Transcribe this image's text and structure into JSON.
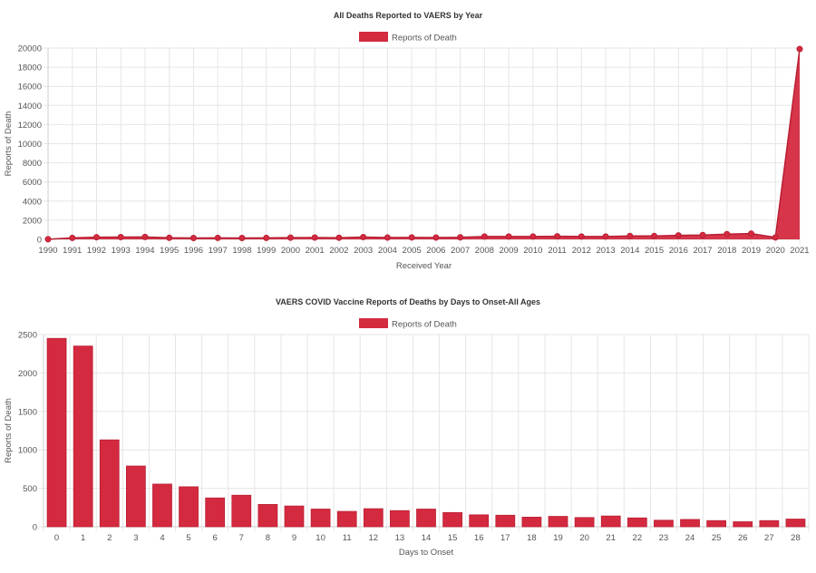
{
  "chart_data": [
    {
      "type": "area",
      "title": "All Deaths Reported to VAERS by Year",
      "xlabel": "Received Year",
      "ylabel": "Reports of Death",
      "legend": [
        "Reports of Death"
      ],
      "legend_position": "top",
      "grid": true,
      "color": "#d42a40",
      "ylim": [
        0,
        20000
      ],
      "yticks": [
        0,
        2000,
        4000,
        6000,
        8000,
        10000,
        12000,
        14000,
        16000,
        18000,
        20000
      ],
      "categories": [
        "1990",
        "1991",
        "1992",
        "1993",
        "1994",
        "1995",
        "1996",
        "1997",
        "1998",
        "1999",
        "2000",
        "2001",
        "2002",
        "2003",
        "2004",
        "2005",
        "2006",
        "2007",
        "2008",
        "2009",
        "2010",
        "2011",
        "2012",
        "2013",
        "2014",
        "2015",
        "2016",
        "2017",
        "2018",
        "2019",
        "2020",
        "2021"
      ],
      "series": [
        {
          "name": "Reports of Death",
          "values": [
            10,
            150,
            220,
            240,
            250,
            160,
            140,
            150,
            140,
            150,
            180,
            190,
            170,
            240,
            190,
            200,
            190,
            210,
            300,
            300,
            300,
            320,
            300,
            300,
            350,
            350,
            420,
            450,
            550,
            600,
            200,
            19900
          ]
        }
      ]
    },
    {
      "type": "bar",
      "title": "VAERS COVID Vaccine Reports of Deaths by Days to Onset-All Ages",
      "xlabel": "Days to Onset",
      "ylabel": "Reports of Death",
      "legend": [
        "Reports of Death"
      ],
      "legend_position": "top",
      "grid": true,
      "color": "#d42a40",
      "ylim": [
        0,
        2500
      ],
      "yticks": [
        0,
        500,
        1000,
        1500,
        2000,
        2500
      ],
      "categories": [
        "0",
        "1",
        "2",
        "3",
        "4",
        "5",
        "6",
        "7",
        "8",
        "9",
        "10",
        "11",
        "12",
        "13",
        "14",
        "15",
        "16",
        "17",
        "18",
        "19",
        "20",
        "21",
        "22",
        "23",
        "24",
        "25",
        "26",
        "27",
        "28"
      ],
      "series": [
        {
          "name": "Reports of Death",
          "values": [
            2450,
            2350,
            1130,
            790,
            555,
            520,
            375,
            410,
            290,
            270,
            230,
            200,
            235,
            210,
            230,
            185,
            155,
            150,
            125,
            135,
            120,
            140,
            115,
            85,
            95,
            80,
            65,
            80,
            100
          ]
        }
      ]
    }
  ]
}
